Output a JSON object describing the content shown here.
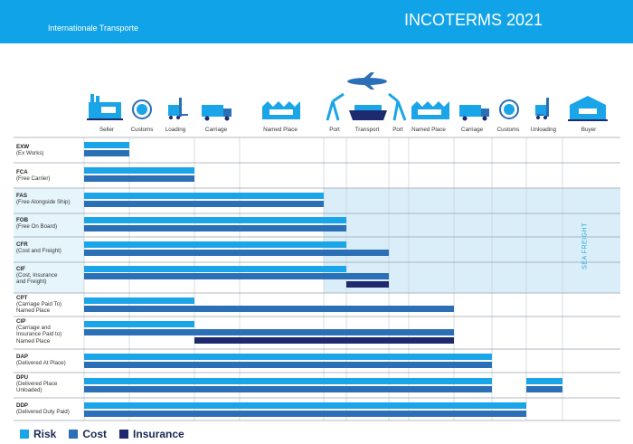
{
  "header": {
    "subtitle": "Internationale Transporte",
    "title": "INCOTERMS 2021"
  },
  "columns": [
    "Seller",
    "Customs",
    "Loading",
    "Carriage",
    "Named Place",
    "Port",
    "Transport",
    "Port",
    "Named Place",
    "Carriage",
    "Customs",
    "Unloading",
    "Buyer"
  ],
  "sea_freight_label": "SEA FREIGHT",
  "colors": {
    "risk": "#1aa5e8",
    "cost": "#2b6fb6",
    "insurance": "#1f2a6e",
    "sea": "#d9eef9"
  },
  "legend": {
    "risk": "Risk",
    "cost": "Cost",
    "insurance": "Insurance"
  },
  "rows": [
    {
      "code": "EXW",
      "name": "(Ex Works)",
      "risk_to": "Seller",
      "cost_to": "Seller"
    },
    {
      "code": "FCA",
      "name": "(Free Carrier)",
      "risk_to": "Loading",
      "cost_to": "Loading"
    },
    {
      "code": "FAS",
      "name": "(Free Alongside Ship)",
      "risk_to": "Port",
      "cost_to": "Port"
    },
    {
      "code": "FOB",
      "name": "(Free On Board)",
      "risk_to": "Port (on board)",
      "cost_to": "Port (on board)"
    },
    {
      "code": "CFR",
      "name": "(Cost and Freight)",
      "risk_to": "Port (on board)",
      "cost_to": "Port (destination)"
    },
    {
      "code": "CIF",
      "name": "(Cost, Insurance\n and Freight)",
      "risk_to": "Port (on board)",
      "cost_to": "Port (destination)",
      "insurance": "Transport"
    },
    {
      "code": "CPT",
      "name": "(Carriage Paid To)\nNamed Place",
      "risk_to": "Loading",
      "cost_to": "Carriage (destination)"
    },
    {
      "code": "CIP",
      "name": "(Carriage and\nInsurance Paid to)\nNamed Place",
      "risk_to": "Loading",
      "cost_to": "Carriage (destination)",
      "insurance": "Carriage (destination)"
    },
    {
      "code": "DAP",
      "name": "(Delivered At Place)",
      "risk_to": "Customs (destination)",
      "cost_to": "Customs (destination)"
    },
    {
      "code": "DPU",
      "name": "(Delivered Place\nUnloaded)",
      "risk_to": "Unloading",
      "cost_to": "Unloading"
    },
    {
      "code": "DDP",
      "name": "(Delivered Duty Paid)",
      "risk_to": "Buyer",
      "cost_to": "Buyer"
    }
  ]
}
